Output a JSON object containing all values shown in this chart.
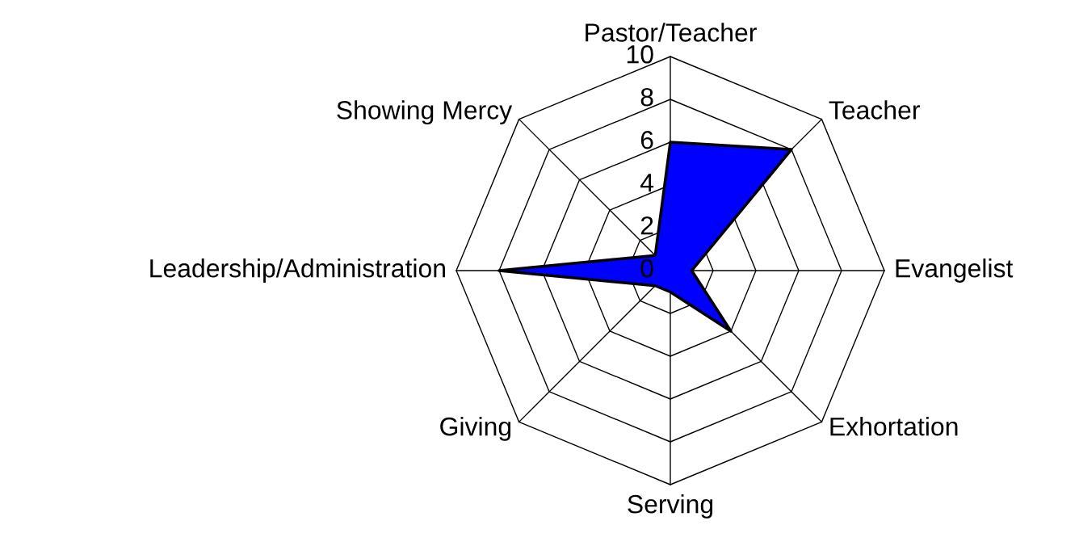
{
  "chart_data": {
    "type": "radar",
    "categories": [
      "Pastor/Teacher",
      "Teacher",
      "Evangelist",
      "Exhortation",
      "Serving",
      "Giving",
      "Leadership/Administration",
      "Showing Mercy"
    ],
    "series": [
      {
        "color": "#0000ff",
        "values": [
          6,
          8,
          1,
          4,
          1,
          1,
          8,
          1
        ]
      }
    ],
    "ylim": [
      0,
      10
    ],
    "yticks": [
      0,
      2,
      4,
      6,
      8,
      10
    ],
    "grid": true
  }
}
